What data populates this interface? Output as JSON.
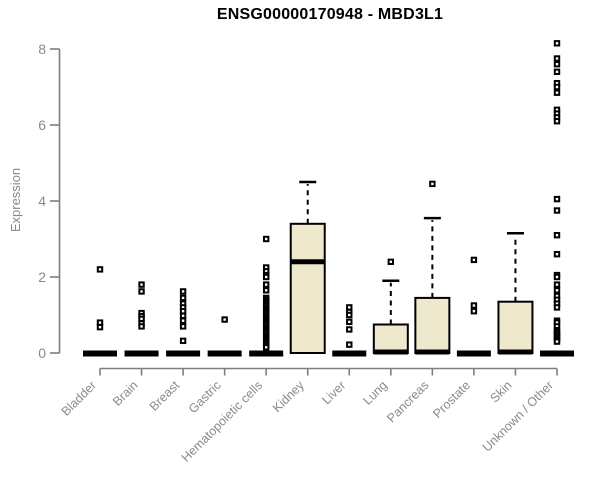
{
  "title": "ENSG00000170948 - MBD3L1",
  "chart_data": {
    "type": "boxplot",
    "title": "ENSG00000170948 - MBD3L1",
    "xlabel": "",
    "ylabel": "Expression",
    "ylim": [
      0,
      8
    ],
    "yticks": [
      0,
      2,
      4,
      6,
      8
    ],
    "grid": false,
    "legend_position": "none",
    "categories": [
      "Bladder",
      "Brain",
      "Breast",
      "Gastric",
      "Hematopoietic cells",
      "Kidney",
      "Liver",
      "Lung",
      "Pancreas",
      "Prostate",
      "Skin",
      "Unknown / Other"
    ],
    "series": [
      {
        "category": "Bladder",
        "q1": 0,
        "median": 0,
        "q3": 0,
        "whisker_low": 0,
        "whisker_high": 0,
        "outliers": [
          2.2,
          0.8,
          0.68
        ]
      },
      {
        "category": "Brain",
        "q1": 0,
        "median": 0,
        "q3": 0,
        "whisker_low": 0,
        "whisker_high": 0,
        "outliers": [
          1.8,
          1.62,
          1.05,
          0.97,
          0.9,
          0.78,
          0.7
        ]
      },
      {
        "category": "Breast",
        "q1": 0,
        "median": 0,
        "q3": 0,
        "whisker_low": 0,
        "whisker_high": 0,
        "outliers": [
          1.62,
          1.45,
          1.3,
          1.2,
          1.1,
          0.98,
          0.85,
          0.7,
          0.32
        ]
      },
      {
        "category": "Gastric",
        "q1": 0,
        "median": 0,
        "q3": 0,
        "whisker_low": 0,
        "whisker_high": 0,
        "outliers": [
          0.88
        ]
      },
      {
        "category": "Hematopoietic cells",
        "q1": 0,
        "median": 0,
        "q3": 0,
        "whisker_low": 0,
        "whisker_high": 0,
        "outliers": [
          3.0,
          2.25,
          2.15,
          2.05,
          2.0,
          1.8,
          1.65,
          1.45,
          1.4,
          1.35,
          1.3,
          1.25,
          1.2,
          1.15,
          1.1,
          1.05,
          1.0,
          0.95,
          0.9,
          0.85,
          0.8,
          0.75,
          0.7,
          0.65,
          0.6,
          0.55,
          0.5,
          0.45,
          0.4,
          0.35,
          0.3,
          0.25,
          0.2,
          0.15
        ]
      },
      {
        "category": "Kidney",
        "q1": 0,
        "median": 2.4,
        "q3": 3.4,
        "whisker_low": 0,
        "whisker_high": 4.5,
        "outliers": []
      },
      {
        "category": "Liver",
        "q1": 0,
        "median": 0,
        "q3": 0,
        "whisker_low": 0,
        "whisker_high": 0,
        "outliers": [
          1.2,
          1.08,
          1.0,
          0.82,
          0.62,
          0.22
        ]
      },
      {
        "category": "Lung",
        "q1": 0,
        "median": 0,
        "q3": 0.75,
        "whisker_low": 0,
        "whisker_high": 1.9,
        "outliers": [
          2.4
        ]
      },
      {
        "category": "Pancreas",
        "q1": 0,
        "median": 0,
        "q3": 1.45,
        "whisker_low": 0,
        "whisker_high": 3.55,
        "outliers": [
          4.45
        ]
      },
      {
        "category": "Prostate",
        "q1": 0,
        "median": 0,
        "q3": 0,
        "whisker_low": 0,
        "whisker_high": 0,
        "outliers": [
          2.45,
          1.25,
          1.1
        ]
      },
      {
        "category": "Skin",
        "q1": 0,
        "median": 0,
        "q3": 1.35,
        "whisker_low": 0,
        "whisker_high": 3.15,
        "outliers": []
      },
      {
        "category": "Unknown / Other",
        "q1": 0,
        "median": 0,
        "q3": 0,
        "whisker_low": 0,
        "whisker_high": 0,
        "outliers": [
          8.15,
          7.75,
          7.6,
          7.4,
          7.1,
          7.0,
          6.85,
          6.4,
          6.3,
          6.2,
          6.1,
          4.05,
          3.75,
          3.1,
          2.6,
          2.05,
          2.0,
          1.8,
          1.65,
          1.5,
          1.4,
          1.3,
          1.2,
          0.85,
          0.8,
          0.7,
          0.6,
          0.55,
          0.5,
          0.45,
          0.4,
          0.35,
          0.3
        ]
      }
    ],
    "colors": {
      "box_fill": "#EEE8CD",
      "box_stroke": "#000000",
      "median": "#000000",
      "outlier_fill": "#FFFFFF",
      "outlier_stroke": "#000000",
      "axis": "#7F7F7F",
      "tick_label": "#8A8A8A",
      "title": "#000000",
      "background": "#FFFFFF"
    }
  }
}
